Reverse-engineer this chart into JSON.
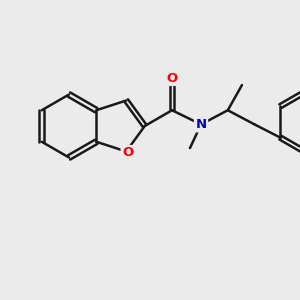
{
  "background_color": "#ebebeb",
  "bond_color": "#1a1a1a",
  "bond_width": 1.8,
  "atom_colors": {
    "O": "#ff0000",
    "N": "#0000cc",
    "C": "#1a1a1a"
  },
  "figsize": [
    3.0,
    3.0
  ],
  "dpi": 100
}
